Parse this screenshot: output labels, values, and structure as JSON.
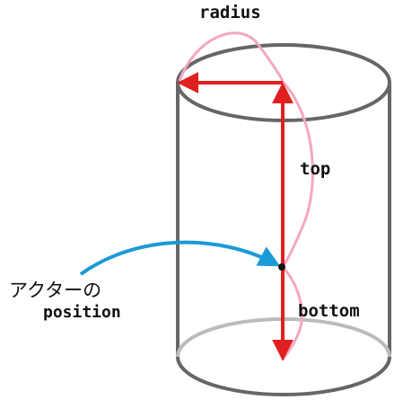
{
  "labels": {
    "radius": "radius",
    "top": "top",
    "bottom": "bottom",
    "actor_line1": "アクターの",
    "actor_line2": "position"
  },
  "colors": {
    "cylinder_outline": "#666666",
    "cylinder_hidden_edge": "#bbbbbb",
    "red_arrows": "#e02020",
    "pink_curves": "#f4a7c0",
    "blue_arrow": "#1a9ad6",
    "actor_point": "#111111",
    "background": "#ffffff"
  },
  "icons": {
    "actor_point": "filled-circle"
  }
}
